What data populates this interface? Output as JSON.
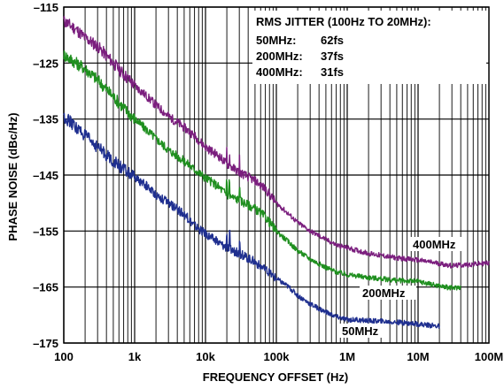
{
  "chart_data": {
    "type": "line",
    "xlabel": "FREQUENCY OFFSET (Hz)",
    "ylabel": "PHASE NOISE (dBc/Hz)",
    "xscale": "log",
    "xlim": [
      100,
      100000000
    ],
    "ylim": [
      -175,
      -115
    ],
    "grid": true,
    "x_tick_values": [
      100,
      1000,
      10000,
      100000,
      1000000,
      10000000,
      100000000
    ],
    "x_tick_labels": [
      "100",
      "1k",
      "10k",
      "100k",
      "1M",
      "10M",
      "100M"
    ],
    "y_tick_values": [
      -115,
      -125,
      -135,
      -145,
      -155,
      -165,
      -175
    ],
    "y_tick_labels": [
      "–115",
      "–125",
      "–135",
      "–145",
      "–155",
      "–165",
      "–175"
    ],
    "annotation": {
      "title": "RMS JITTER (100Hz TO 20MHz):",
      "rows": [
        {
          "freq": "50MHz:",
          "jitter": "62fs"
        },
        {
          "freq": "200MHz:",
          "jitter": "37fs"
        },
        {
          "freq": "400MHz:",
          "jitter": "31fs"
        }
      ]
    },
    "series": [
      {
        "name": "400MHz",
        "color": "#7b1f7e",
        "x": [
          100,
          150,
          200,
          300,
          500,
          700,
          1000,
          1500,
          2000,
          3000,
          5000,
          7000,
          10000,
          15000,
          20000,
          30000,
          50000,
          70000,
          100000,
          150000,
          200000,
          300000,
          500000,
          700000,
          1000000,
          2000000,
          5000000,
          10000000,
          20000000,
          30000000,
          50000000,
          100000000
        ],
        "y": [
          -117.5,
          -119,
          -120.5,
          -122,
          -125,
          -127,
          -129,
          -131,
          -132.5,
          -134.5,
          -136.5,
          -138,
          -140,
          -141.5,
          -143,
          -144.5,
          -146,
          -147.5,
          -150,
          -152,
          -153.5,
          -155,
          -156.5,
          -157.5,
          -158,
          -159,
          -159.8,
          -160.2,
          -160.8,
          -161.2,
          -161,
          -160.7
        ]
      },
      {
        "name": "200MHz",
        "color": "#1f8f1f",
        "x": [
          100,
          150,
          200,
          300,
          500,
          700,
          1000,
          1500,
          2000,
          3000,
          5000,
          7000,
          10000,
          15000,
          20000,
          30000,
          50000,
          70000,
          100000,
          150000,
          200000,
          300000,
          500000,
          700000,
          1000000,
          2000000,
          5000000,
          10000000,
          20000000,
          30000000,
          40000000
        ],
        "y": [
          -123.5,
          -125,
          -126,
          -128,
          -131,
          -133,
          -135,
          -137,
          -138.5,
          -140.5,
          -142.5,
          -144,
          -145.5,
          -147,
          -148.5,
          -149.5,
          -151,
          -152.5,
          -155,
          -157,
          -158.5,
          -160,
          -161.5,
          -162.3,
          -162.8,
          -163.3,
          -163.8,
          -164,
          -164.8,
          -165.2,
          -165
        ]
      },
      {
        "name": "50MHz",
        "color": "#1f2f8f",
        "x": [
          100,
          150,
          200,
          300,
          500,
          700,
          1000,
          1500,
          2000,
          3000,
          5000,
          7000,
          10000,
          15000,
          20000,
          30000,
          50000,
          70000,
          100000,
          150000,
          200000,
          300000,
          500000,
          700000,
          1000000,
          2000000,
          5000000,
          10000000,
          20000000
        ],
        "y": [
          -134.5,
          -136.5,
          -138,
          -140,
          -142.5,
          -144,
          -145.5,
          -147,
          -148.5,
          -150,
          -152,
          -154,
          -155.5,
          -157,
          -158,
          -159,
          -160.5,
          -162,
          -163.5,
          -165,
          -166.5,
          -168,
          -169.5,
          -170.3,
          -170.8,
          -171,
          -171.3,
          -171.6,
          -172
        ]
      }
    ]
  }
}
